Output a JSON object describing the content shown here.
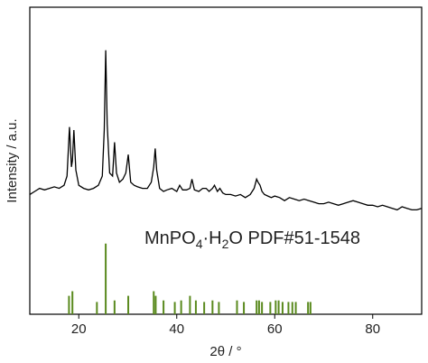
{
  "chart_data": {
    "type": "line",
    "x_label": "2θ / °",
    "y_label": "Intensity / a.u.",
    "xlim": [
      10,
      90
    ],
    "xticks": [
      20,
      40,
      60,
      80
    ],
    "ylim": [
      0,
      100
    ],
    "color": "#000000",
    "x": [
      10,
      11,
      12,
      13,
      14,
      15,
      16,
      17,
      17.6,
      18.1,
      18.5,
      18.7,
      19.0,
      19.4,
      20,
      21,
      22,
      23,
      24,
      24.8,
      25.2,
      25.5,
      25.8,
      26.3,
      26.9,
      27.3,
      27.7,
      28.3,
      29,
      29.6,
      30.1,
      30.6,
      31.3,
      32,
      33,
      34,
      34.8,
      35.3,
      35.6,
      35.9,
      36.5,
      37.3,
      38,
      39,
      40,
      40.6,
      41.2,
      42,
      42.7,
      43.1,
      43.6,
      44.5,
      45.3,
      46,
      46.6,
      47.3,
      47.7,
      48.3,
      48.8,
      49.4,
      50,
      51,
      52,
      53,
      54,
      55,
      55.8,
      56.3,
      56.6,
      57,
      57.4,
      57.9,
      58.6,
      59.3,
      60,
      61,
      62,
      63,
      64,
      65,
      66,
      67,
      68,
      69,
      70,
      71,
      72,
      73,
      74,
      75,
      76,
      77,
      78,
      79,
      80,
      81,
      82,
      83,
      84,
      85,
      86,
      87,
      88,
      89,
      90
    ],
    "values": [
      39,
      40,
      41,
      40.5,
      41,
      41.5,
      41,
      42,
      45,
      61,
      48,
      50,
      60,
      47,
      42,
      41,
      40.5,
      41,
      42,
      45,
      60,
      86,
      62,
      46,
      45,
      56,
      46,
      43,
      44,
      46,
      52,
      43,
      42,
      41.5,
      41,
      41,
      43,
      48,
      54,
      47,
      41,
      40,
      40.5,
      41,
      40,
      42,
      40.5,
      40.5,
      41,
      44,
      40.5,
      40,
      41,
      41,
      40,
      41,
      42,
      40,
      41,
      39.5,
      39,
      39,
      38.5,
      39,
      38,
      39,
      41,
      44,
      43,
      42,
      40,
      39,
      38.5,
      38,
      38.5,
      38,
      37,
      38,
      37.5,
      37,
      37.5,
      37,
      36.5,
      36,
      36,
      36.5,
      36,
      35.5,
      36,
      36.5,
      37,
      36.5,
      36,
      35.5,
      35.5,
      35,
      35.5,
      35,
      34.5,
      34,
      35,
      34.5,
      34,
      34,
      34.5
    ],
    "reference": {
      "label_parts": [
        "MnPO",
        "4",
        "·H",
        "2",
        "O PDF#51-1548"
      ],
      "color": "#5a8a1e",
      "x": [
        18.0,
        18.7,
        23.7,
        25.5,
        27.3,
        30.1,
        35.3,
        35.7,
        37.3,
        39.6,
        40.9,
        42.7,
        43.9,
        45.6,
        47.3,
        48.6,
        52.3,
        53.7,
        56.3,
        56.8,
        57.4,
        59.1,
        60.2,
        60.8,
        61.6,
        62.8,
        63.6,
        64.3,
        66.8,
        67.3
      ],
      "values": [
        6,
        7.5,
        4,
        23,
        4.5,
        6,
        7.5,
        6,
        4.5,
        4,
        4.5,
        6,
        4.5,
        4,
        4.5,
        4,
        4.5,
        4,
        4.5,
        4.5,
        4,
        4,
        4.5,
        4.5,
        4,
        4,
        4,
        4,
        4,
        4
      ]
    }
  }
}
